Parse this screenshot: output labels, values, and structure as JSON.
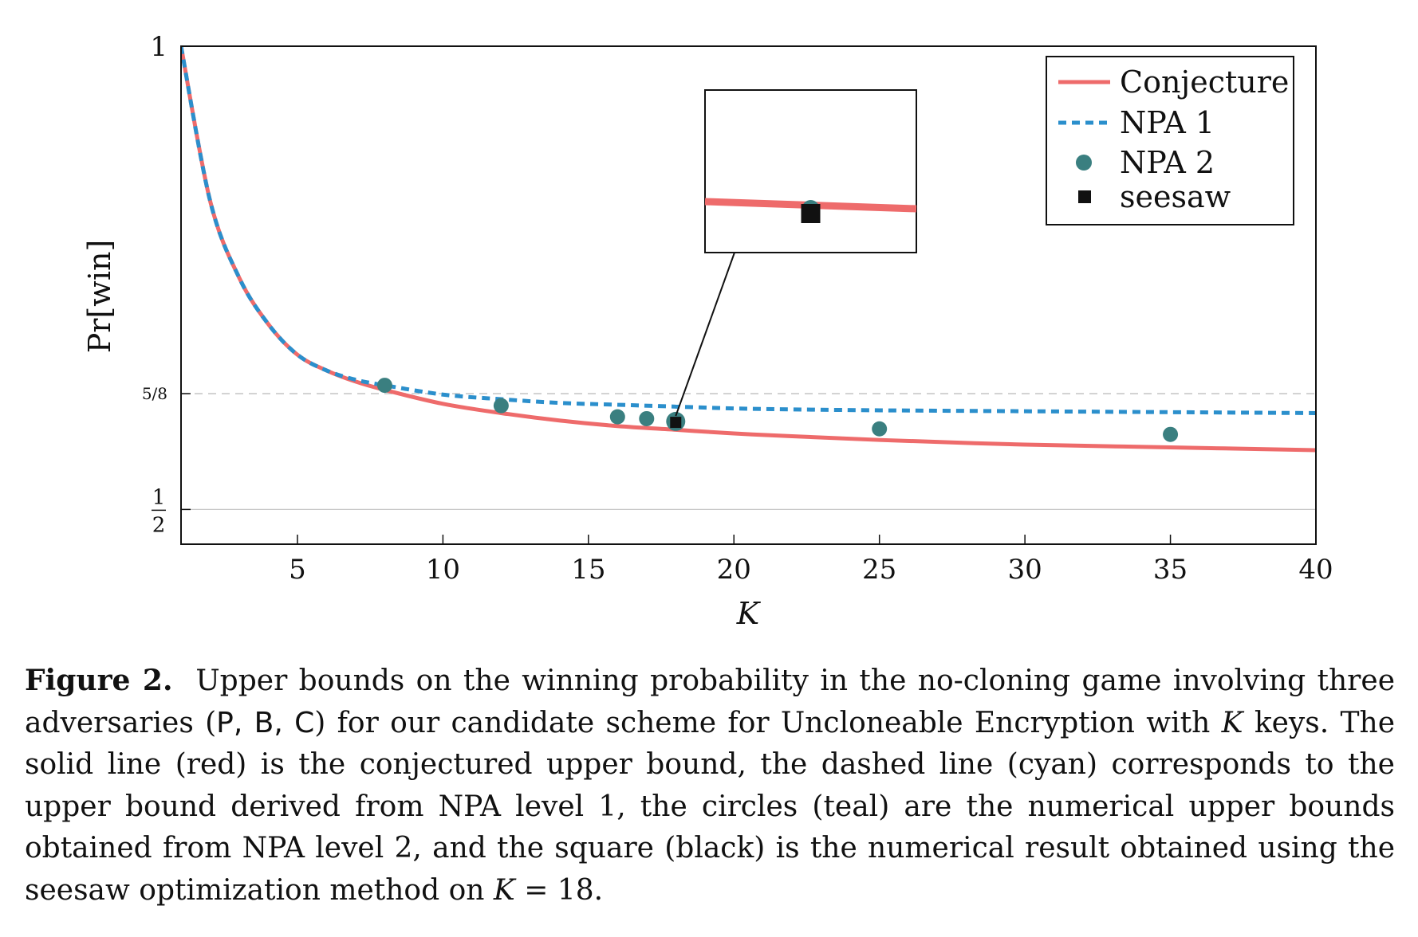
{
  "chart_data": {
    "type": "line",
    "xlabel": "K",
    "ylabel": "Pr[win]",
    "xlim": [
      1,
      40
    ],
    "ylim": [
      0.4625,
      1
    ],
    "x_ticks": [
      5,
      10,
      15,
      20,
      25,
      30,
      35,
      40
    ],
    "x_tick_labels": [
      "5",
      "10",
      "15",
      "20",
      "25",
      "30",
      "35",
      "40"
    ],
    "y_ticks": [
      {
        "value": 1,
        "label": "1"
      },
      {
        "value": 0.625,
        "label": "5/8",
        "style": "dashed"
      },
      {
        "value": 0.5,
        "label_num": "1",
        "label_den": "2",
        "style": "solid"
      }
    ],
    "legend_position": "top-right",
    "grid": false,
    "series": [
      {
        "name": "Conjecture",
        "kind": "line",
        "style": "solid",
        "color": "#ee6b6b",
        "x": [
          1,
          2,
          3,
          4,
          5,
          6,
          7,
          8,
          10,
          12,
          14,
          16,
          18,
          20,
          22,
          25,
          30,
          35,
          40
        ],
        "y": [
          1.0,
          0.833,
          0.75,
          0.7,
          0.667,
          0.65,
          0.638,
          0.629,
          0.614,
          0.604,
          0.596,
          0.59,
          0.586,
          0.582,
          0.579,
          0.575,
          0.57,
          0.567,
          0.564
        ]
      },
      {
        "name": "NPA 1",
        "kind": "line",
        "style": "dashed",
        "color": "#2b8fcc",
        "x": [
          1,
          2,
          3,
          4,
          5,
          6,
          7,
          8,
          10,
          12,
          14,
          16,
          18,
          20,
          22,
          25,
          30,
          35,
          40
        ],
        "y": [
          1.0,
          0.833,
          0.75,
          0.7,
          0.667,
          0.65,
          0.64,
          0.634,
          0.624,
          0.619,
          0.615,
          0.613,
          0.611,
          0.609,
          0.608,
          0.607,
          0.606,
          0.605,
          0.604
        ]
      },
      {
        "name": "NPA 2",
        "kind": "scatter",
        "marker": "circle",
        "color": "#3a7f80",
        "x": [
          8,
          12,
          16,
          17,
          18,
          25,
          35
        ],
        "y": [
          0.634,
          0.612,
          0.6,
          0.598,
          0.595,
          0.587,
          0.581
        ]
      },
      {
        "name": "seesaw",
        "kind": "scatter",
        "marker": "square",
        "color": "#111111",
        "x": [
          18
        ],
        "y": [
          0.594
        ]
      }
    ],
    "inset": {
      "zoom_on_x": 18
    }
  },
  "caption": {
    "label": "Figure 2.",
    "text_1": "Upper bounds on the winning probability in the no-cloning game involving three adversaries (",
    "parties": "P, B, C",
    "text_2": ") for our candidate scheme for Uncloneable Encryption with ",
    "k_symbol": "K",
    "text_3": " keys. The solid line (red) is the conjectured upper bound, the dashed line (cyan) corresponds to the upper bound derived from NPA level 1, the circles (teal) are the numerical upper bounds obtained from NPA level 2, and the square (black) is the numerical result obtained using the seesaw optimization method on ",
    "k_symbol_2": "K",
    "text_4": " = 18."
  }
}
